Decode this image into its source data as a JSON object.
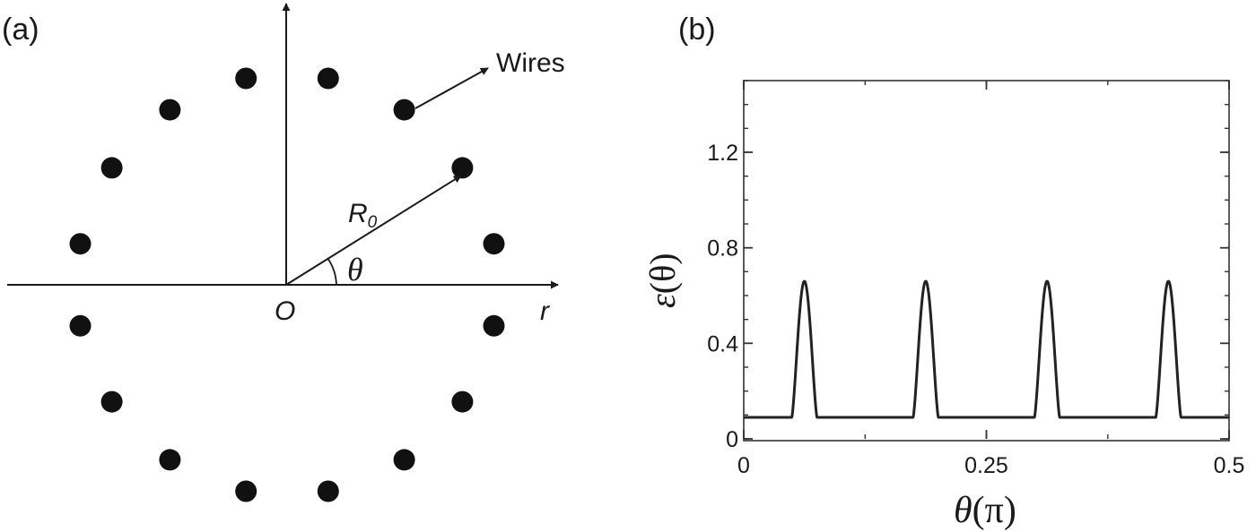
{
  "panel_a": {
    "label": "(a)",
    "wires_label": "Wires",
    "radius_label_main": "R",
    "radius_label_sub": "0",
    "angle_label": "θ",
    "origin_label": "O",
    "r_axis_label": "r",
    "wire_count": 16,
    "wire_color": "#111111"
  },
  "panel_b": {
    "label": "(b)",
    "ylabel_main": "ε",
    "ylabel_arg": "(θ)",
    "xlabel_main": "θ",
    "xlabel_arg": "(π)"
  },
  "chart_data": {
    "type": "line",
    "xlim": [
      0,
      0.5
    ],
    "ylim": [
      0,
      1.5
    ],
    "x_ticks": [
      0,
      0.25,
      0.5
    ],
    "x_tick_labels": [
      "0",
      "0.25",
      "0.5"
    ],
    "y_ticks": [
      0,
      0.4,
      0.8,
      1.2
    ],
    "y_tick_labels": [
      "0",
      "0.4",
      "0.8",
      "1.2"
    ],
    "grid": false,
    "line_color": "#222222",
    "series": [
      {
        "baseline": 0.09,
        "peak_value": 0.66,
        "peak_centers": [
          0.0625,
          0.1875,
          0.3125,
          0.4375
        ],
        "peak_half_width": 0.013
      }
    ]
  }
}
